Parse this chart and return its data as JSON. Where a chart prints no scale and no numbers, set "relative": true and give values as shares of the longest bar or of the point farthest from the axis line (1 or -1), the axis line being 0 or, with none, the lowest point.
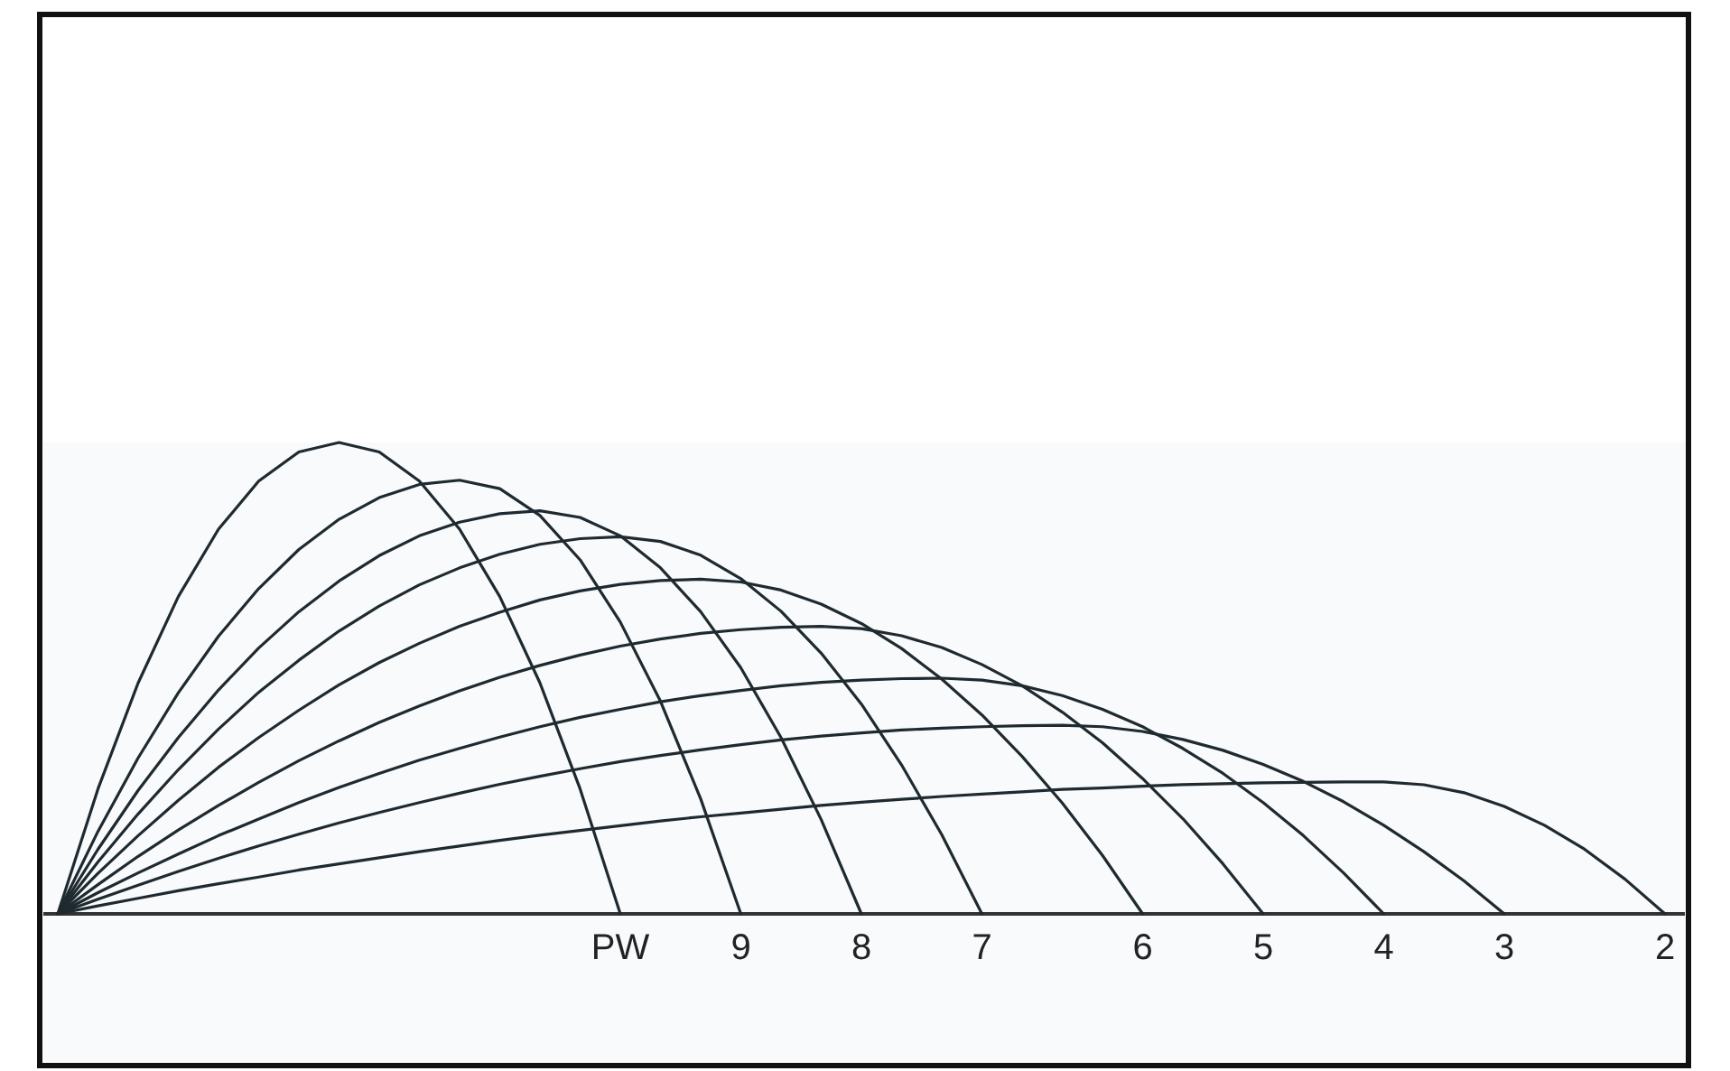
{
  "chart_data": {
    "type": "line",
    "relative": true,
    "color": "#1f2a30",
    "marker": "none",
    "line_style": "solid",
    "categories": [
      null,
      null,
      null,
      null,
      null,
      null,
      null,
      null,
      null,
      null,
      null,
      null,
      null,
      null,
      null,
      null,
      null,
      null,
      null,
      null,
      null,
      null,
      null,
      null,
      null,
      null,
      null,
      null,
      null,
      null,
      null,
      null,
      null,
      null,
      null,
      null,
      null,
      null,
      null,
      null,
      null
    ],
    "series": [
      {
        "name": "PW",
        "values": [
          0,
          0.265,
          0.49,
          0.673,
          0.816,
          0.918,
          0.98,
          1,
          0.98,
          0.918,
          0.816,
          0.673,
          0.49,
          0.265,
          0,
          null,
          null,
          null,
          null,
          null,
          null,
          null,
          null,
          null,
          null,
          null,
          null,
          null,
          null,
          null,
          null,
          null,
          null,
          null,
          null,
          null,
          null,
          null,
          null,
          null,
          null
        ]
      },
      {
        "name": "9",
        "values": [
          0,
          0.175,
          0.331,
          0.469,
          0.589,
          0.69,
          0.773,
          0.837,
          0.883,
          0.911,
          0.92,
          0.902,
          0.845,
          0.751,
          0.619,
          0.451,
          0.244,
          0,
          null,
          null,
          null,
          null,
          null,
          null,
          null,
          null,
          null,
          null,
          null,
          null,
          null,
          null,
          null,
          null,
          null,
          null,
          null,
          null,
          null,
          null,
          null
        ]
      },
      {
        "name": "8",
        "values": [
          0,
          0.137,
          0.262,
          0.374,
          0.475,
          0.564,
          0.641,
          0.706,
          0.76,
          0.802,
          0.831,
          0.849,
          0.855,
          0.841,
          0.802,
          0.734,
          0.641,
          0.522,
          0.374,
          0.2,
          0,
          null,
          null,
          null,
          null,
          null,
          null,
          null,
          null,
          null,
          null,
          null,
          null,
          null,
          null,
          null,
          null,
          null,
          null,
          null,
          null
        ]
      },
      {
        "name": "7",
        "values": [
          0,
          0.11,
          0.212,
          0.306,
          0.392,
          0.47,
          0.538,
          0.6,
          0.653,
          0.698,
          0.734,
          0.763,
          0.784,
          0.796,
          0.8,
          0.79,
          0.761,
          0.711,
          0.642,
          0.553,
          0.445,
          0.316,
          0.168,
          0,
          null,
          null,
          null,
          null,
          null,
          null,
          null,
          null,
          null,
          null,
          null,
          null,
          null,
          null,
          null,
          null,
          null
        ]
      },
      {
        "name": "6",
        "values": [
          0,
          0.086,
          0.166,
          0.241,
          0.311,
          0.374,
          0.432,
          0.486,
          0.533,
          0.574,
          0.61,
          0.64,
          0.666,
          0.685,
          0.699,
          0.707,
          0.71,
          0.704,
          0.687,
          0.657,
          0.616,
          0.563,
          0.498,
          0.422,
          0.334,
          0.235,
          0.124,
          0,
          null,
          null,
          null,
          null,
          null,
          null,
          null,
          null,
          null,
          null,
          null,
          null,
          null
        ]
      },
      {
        "name": "5",
        "values": [
          0,
          0.062,
          0.122,
          0.178,
          0.23,
          0.279,
          0.325,
          0.367,
          0.406,
          0.441,
          0.473,
          0.502,
          0.527,
          0.549,
          0.568,
          0.583,
          0.595,
          0.603,
          0.608,
          0.61,
          0.605,
          0.59,
          0.565,
          0.529,
          0.484,
          0.428,
          0.363,
          0.287,
          0.202,
          0.106,
          0,
          null,
          null,
          null,
          null,
          null,
          null,
          null,
          null,
          null,
          null
        ]
      },
      {
        "name": "4",
        "values": [
          0,
          0.045,
          0.087,
          0.127,
          0.166,
          0.201,
          0.236,
          0.268,
          0.298,
          0.326,
          0.351,
          0.375,
          0.397,
          0.417,
          0.434,
          0.45,
          0.463,
          0.474,
          0.484,
          0.491,
          0.496,
          0.499,
          0.5,
          0.496,
          0.484,
          0.463,
          0.434,
          0.397,
          0.351,
          0.298,
          0.236,
          0.166,
          0.087,
          0,
          null,
          null,
          null,
          null,
          null,
          null,
          null
        ]
      },
      {
        "name": "3",
        "values": [
          0,
          0.031,
          0.061,
          0.09,
          0.118,
          0.144,
          0.169,
          0.193,
          0.215,
          0.236,
          0.256,
          0.275,
          0.292,
          0.308,
          0.323,
          0.336,
          0.348,
          0.359,
          0.369,
          0.377,
          0.384,
          0.39,
          0.394,
          0.397,
          0.399,
          0.4,
          0.397,
          0.387,
          0.37,
          0.347,
          0.317,
          0.281,
          0.238,
          0.188,
          0.132,
          0.07,
          0,
          null,
          null,
          null,
          null
        ]
      },
      {
        "name": "2",
        "values": [
          0,
          0.017,
          0.033,
          0.049,
          0.064,
          0.078,
          0.093,
          0.106,
          0.119,
          0.132,
          0.144,
          0.156,
          0.167,
          0.177,
          0.187,
          0.197,
          0.206,
          0.214,
          0.222,
          0.23,
          0.237,
          0.243,
          0.249,
          0.254,
          0.259,
          0.264,
          0.267,
          0.271,
          0.274,
          0.276,
          0.278,
          0.279,
          0.28,
          0.28,
          0.274,
          0.257,
          0.228,
          0.188,
          0.137,
          0.074,
          0
        ]
      }
    ]
  }
}
